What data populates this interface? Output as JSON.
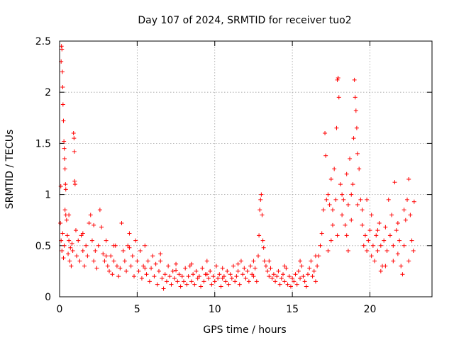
{
  "chart_data": {
    "type": "scatter",
    "title": "Day 107 of 2024, SRMTID for receiver tuo2",
    "xlabel": "GPS time / hours",
    "ylabel": "SRMTID / TECUs",
    "xlim": [
      0,
      24
    ],
    "ylim": [
      0,
      2.5
    ],
    "x_ticks": [
      0,
      5,
      10,
      15,
      20
    ],
    "x_tick_labels": [
      "0",
      "5",
      "10",
      "15",
      "20"
    ],
    "y_ticks": [
      0,
      0.5,
      1,
      1.5,
      2,
      2.5
    ],
    "y_tick_labels": [
      "0",
      "0.5",
      "1",
      "1.5",
      "2",
      "2.5"
    ],
    "grid": true,
    "marker": "+",
    "color": "#ff0000",
    "series": [
      {
        "name": "SRMTID",
        "points": [
          [
            0.05,
            0.72
          ],
          [
            0.08,
            1.08
          ],
          [
            0.1,
            2.3
          ],
          [
            0.12,
            2.45
          ],
          [
            0.15,
            2.42
          ],
          [
            0.18,
            2.2
          ],
          [
            0.2,
            2.05
          ],
          [
            0.22,
            1.88
          ],
          [
            0.25,
            1.72
          ],
          [
            0.28,
            1.52
          ],
          [
            0.3,
            1.45
          ],
          [
            0.32,
            1.35
          ],
          [
            0.35,
            1.25
          ],
          [
            0.38,
            1.1
          ],
          [
            0.4,
            1.05
          ],
          [
            0.1,
            0.55
          ],
          [
            0.15,
            0.45
          ],
          [
            0.2,
            0.62
          ],
          [
            0.25,
            0.38
          ],
          [
            0.3,
            0.5
          ],
          [
            0.35,
            0.85
          ],
          [
            0.4,
            0.8
          ],
          [
            0.45,
            0.75
          ],
          [
            0.5,
            0.6
          ],
          [
            0.55,
            0.42
          ],
          [
            0.6,
            0.55
          ],
          [
            0.65,
            0.35
          ],
          [
            0.7,
            0.48
          ],
          [
            0.75,
            0.3
          ],
          [
            0.8,
            0.52
          ],
          [
            0.85,
            0.45
          ],
          [
            0.9,
            1.6
          ],
          [
            0.93,
            1.55
          ],
          [
            0.95,
            1.42
          ],
          [
            0.97,
            1.13
          ],
          [
            1.0,
            1.1
          ],
          [
            1.05,
            0.65
          ],
          [
            1.1,
            0.4
          ],
          [
            1.2,
            0.55
          ],
          [
            1.3,
            0.35
          ],
          [
            1.4,
            0.6
          ],
          [
            1.5,
            0.45
          ],
          [
            1.6,
            0.3
          ],
          [
            1.7,
            0.5
          ],
          [
            1.8,
            0.4
          ],
          [
            1.9,
            0.72
          ],
          [
            2.0,
            0.8
          ],
          [
            2.1,
            0.55
          ],
          [
            2.2,
            0.35
          ],
          [
            2.3,
            0.45
          ],
          [
            2.4,
            0.28
          ],
          [
            2.5,
            0.5
          ],
          [
            2.6,
            0.85
          ],
          [
            2.7,
            0.68
          ],
          [
            2.8,
            0.42
          ],
          [
            2.9,
            0.35
          ],
          [
            3.0,
            0.55
          ],
          [
            3.1,
            0.3
          ],
          [
            3.2,
            0.25
          ],
          [
            3.3,
            0.4
          ],
          [
            3.4,
            0.22
          ],
          [
            3.5,
            0.35
          ],
          [
            3.6,
            0.5
          ],
          [
            3.7,
            0.3
          ],
          [
            3.8,
            0.2
          ],
          [
            3.9,
            0.28
          ],
          [
            4.0,
            0.72
          ],
          [
            4.1,
            0.45
          ],
          [
            4.2,
            0.35
          ],
          [
            4.3,
            0.25
          ],
          [
            4.4,
            0.5
          ],
          [
            4.5,
            0.62
          ],
          [
            4.6,
            0.3
          ],
          [
            4.7,
            0.4
          ],
          [
            4.8,
            0.2
          ],
          [
            4.9,
            0.55
          ],
          [
            5.0,
            0.35
          ],
          [
            5.1,
            0.25
          ],
          [
            5.2,
            0.45
          ],
          [
            5.3,
            0.18
          ],
          [
            5.4,
            0.3
          ],
          [
            5.5,
            0.5
          ],
          [
            5.6,
            0.22
          ],
          [
            5.7,
            0.35
          ],
          [
            5.8,
            0.15
          ],
          [
            5.9,
            0.28
          ],
          [
            6.0,
            0.4
          ],
          [
            6.1,
            0.2
          ],
          [
            6.2,
            0.32
          ],
          [
            6.3,
            0.12
          ],
          [
            6.4,
            0.25
          ],
          [
            6.5,
            0.35
          ],
          [
            6.6,
            0.18
          ],
          [
            6.7,
            0.08
          ],
          [
            6.8,
            0.22
          ],
          [
            6.9,
            0.15
          ],
          [
            7.0,
            0.3
          ],
          [
            7.1,
            0.2
          ],
          [
            7.2,
            0.12
          ],
          [
            7.3,
            0.25
          ],
          [
            7.4,
            0.18
          ],
          [
            7.5,
            0.32
          ],
          [
            7.6,
            0.15
          ],
          [
            7.7,
            0.22
          ],
          [
            7.8,
            0.1
          ],
          [
            7.9,
            0.2
          ],
          [
            8.0,
            0.15
          ],
          [
            8.1,
            0.28
          ],
          [
            8.2,
            0.12
          ],
          [
            8.3,
            0.2
          ],
          [
            8.4,
            0.3
          ],
          [
            8.5,
            0.15
          ],
          [
            8.6,
            0.22
          ],
          [
            8.7,
            0.12
          ],
          [
            8.8,
            0.25
          ],
          [
            8.9,
            0.18
          ],
          [
            9.0,
            0.2
          ],
          [
            9.1,
            0.1
          ],
          [
            9.2,
            0.28
          ],
          [
            9.3,
            0.15
          ],
          [
            9.4,
            0.22
          ],
          [
            9.5,
            0.35
          ],
          [
            9.6,
            0.18
          ],
          [
            9.7,
            0.25
          ],
          [
            9.8,
            0.12
          ],
          [
            9.9,
            0.2
          ],
          [
            10.0,
            0.15
          ],
          [
            10.1,
            0.3
          ],
          [
            10.2,
            0.18
          ],
          [
            10.3,
            0.22
          ],
          [
            10.4,
            0.1
          ],
          [
            10.5,
            0.28
          ],
          [
            10.6,
            0.2
          ],
          [
            10.7,
            0.15
          ],
          [
            10.8,
            0.25
          ],
          [
            10.9,
            0.12
          ],
          [
            11.0,
            0.22
          ],
          [
            11.1,
            0.18
          ],
          [
            11.2,
            0.3
          ],
          [
            11.3,
            0.15
          ],
          [
            11.4,
            0.2
          ],
          [
            11.5,
            0.25
          ],
          [
            11.6,
            0.12
          ],
          [
            11.7,
            0.35
          ],
          [
            11.8,
            0.22
          ],
          [
            11.9,
            0.28
          ],
          [
            12.0,
            0.18
          ],
          [
            12.1,
            0.25
          ],
          [
            12.2,
            0.15
          ],
          [
            12.3,
            0.3
          ],
          [
            12.4,
            0.22
          ],
          [
            12.5,
            0.2
          ],
          [
            12.6,
            0.28
          ],
          [
            12.7,
            0.15
          ],
          [
            12.8,
            0.4
          ],
          [
            12.85,
            0.6
          ],
          [
            12.9,
            0.85
          ],
          [
            12.95,
            0.95
          ],
          [
            13.0,
            1.0
          ],
          [
            13.05,
            0.8
          ],
          [
            13.1,
            0.55
          ],
          [
            13.15,
            0.48
          ],
          [
            13.2,
            0.35
          ],
          [
            13.3,
            0.3
          ],
          [
            13.4,
            0.25
          ],
          [
            13.5,
            0.2
          ],
          [
            13.6,
            0.28
          ],
          [
            13.7,
            0.18
          ],
          [
            13.8,
            0.22
          ],
          [
            13.9,
            0.15
          ],
          [
            14.0,
            0.2
          ],
          [
            14.1,
            0.25
          ],
          [
            14.2,
            0.12
          ],
          [
            14.3,
            0.18
          ],
          [
            14.4,
            0.22
          ],
          [
            14.5,
            0.15
          ],
          [
            14.6,
            0.28
          ],
          [
            14.7,
            0.12
          ],
          [
            14.8,
            0.2
          ],
          [
            14.9,
            0.1
          ],
          [
            15.0,
            0.18
          ],
          [
            15.1,
            0.15
          ],
          [
            15.2,
            0.22
          ],
          [
            15.3,
            0.12
          ],
          [
            15.4,
            0.25
          ],
          [
            15.5,
            0.18
          ],
          [
            15.6,
            0.3
          ],
          [
            15.7,
            0.2
          ],
          [
            15.8,
            0.15
          ],
          [
            15.9,
            0.1
          ],
          [
            16.0,
            0.22
          ],
          [
            16.1,
            0.28
          ],
          [
            16.2,
            0.35
          ],
          [
            16.3,
            0.2
          ],
          [
            16.4,
            0.25
          ],
          [
            16.5,
            0.15
          ],
          [
            16.6,
            0.3
          ],
          [
            16.7,
            0.4
          ],
          [
            16.8,
            0.5
          ],
          [
            16.9,
            0.62
          ],
          [
            17.0,
            0.85
          ],
          [
            17.1,
            1.6
          ],
          [
            17.15,
            1.38
          ],
          [
            17.2,
            0.95
          ],
          [
            17.3,
            1.0
          ],
          [
            17.4,
            0.9
          ],
          [
            17.5,
            1.15
          ],
          [
            17.6,
            0.85
          ],
          [
            17.7,
            1.25
          ],
          [
            17.8,
            0.95
          ],
          [
            17.85,
            1.65
          ],
          [
            17.9,
            2.12
          ],
          [
            17.95,
            2.14
          ],
          [
            18.0,
            1.95
          ],
          [
            18.1,
            1.1
          ],
          [
            18.2,
            0.8
          ],
          [
            18.3,
            0.95
          ],
          [
            18.4,
            0.7
          ],
          [
            18.5,
            1.2
          ],
          [
            18.6,
            0.9
          ],
          [
            18.7,
            1.35
          ],
          [
            18.8,
            1.0
          ],
          [
            18.9,
            1.1
          ],
          [
            18.95,
            1.55
          ],
          [
            19.0,
            2.12
          ],
          [
            19.05,
            1.95
          ],
          [
            19.1,
            1.82
          ],
          [
            19.15,
            1.65
          ],
          [
            19.2,
            1.4
          ],
          [
            19.3,
            1.25
          ],
          [
            19.4,
            0.95
          ],
          [
            19.5,
            0.7
          ],
          [
            19.6,
            0.5
          ],
          [
            19.7,
            0.6
          ],
          [
            19.8,
            0.45
          ],
          [
            19.9,
            0.55
          ],
          [
            20.0,
            0.65
          ],
          [
            20.1,
            0.4
          ],
          [
            20.2,
            0.5
          ],
          [
            20.3,
            0.35
          ],
          [
            20.4,
            0.6
          ],
          [
            20.5,
            0.45
          ],
          [
            20.6,
            0.72
          ],
          [
            20.7,
            0.5
          ],
          [
            20.8,
            0.3
          ],
          [
            20.9,
            0.55
          ],
          [
            21.0,
            0.68
          ],
          [
            21.1,
            0.45
          ],
          [
            21.2,
            0.95
          ],
          [
            21.3,
            0.6
          ],
          [
            21.4,
            0.8
          ],
          [
            21.5,
            0.5
          ],
          [
            21.6,
            1.12
          ],
          [
            21.7,
            0.65
          ],
          [
            21.8,
            0.42
          ],
          [
            21.9,
            0.55
          ],
          [
            22.0,
            0.3
          ],
          [
            22.1,
            0.22
          ],
          [
            22.2,
            0.5
          ],
          [
            22.3,
            0.75
          ],
          [
            22.4,
            0.95
          ],
          [
            22.5,
            1.15
          ],
          [
            22.6,
            0.8
          ],
          [
            22.7,
            0.55
          ],
          [
            22.8,
            0.45
          ],
          [
            22.85,
            0.93
          ],
          [
            0.6,
            0.8
          ],
          [
            1.5,
            0.62
          ],
          [
            2.2,
            0.7
          ],
          [
            3.0,
            0.4
          ],
          [
            3.5,
            0.5
          ],
          [
            4.5,
            0.48
          ],
          [
            5.5,
            0.28
          ],
          [
            6.5,
            0.42
          ],
          [
            7.5,
            0.26
          ],
          [
            8.5,
            0.32
          ],
          [
            9.5,
            0.22
          ],
          [
            10.5,
            0.18
          ],
          [
            11.5,
            0.32
          ],
          [
            12.5,
            0.35
          ],
          [
            13.5,
            0.35
          ],
          [
            14.5,
            0.3
          ],
          [
            15.5,
            0.35
          ],
          [
            16.5,
            0.4
          ],
          [
            17.5,
            0.55
          ],
          [
            18.5,
            0.6
          ],
          [
            19.5,
            0.85
          ],
          [
            20.5,
            0.65
          ],
          [
            21.5,
            0.35
          ],
          [
            22.5,
            0.35
          ],
          [
            17.3,
            0.45
          ],
          [
            17.6,
            0.7
          ],
          [
            18.2,
            1.0
          ],
          [
            18.8,
            0.75
          ],
          [
            19.2,
            0.9
          ],
          [
            21.0,
            0.3
          ],
          [
            21.8,
            0.72
          ],
          [
            22.2,
            0.85
          ],
          [
            20.1,
            0.8
          ],
          [
            20.7,
            0.25
          ],
          [
            19.8,
            0.95
          ],
          [
            17.9,
            0.6
          ],
          [
            18.6,
            0.45
          ]
        ]
      }
    ]
  }
}
